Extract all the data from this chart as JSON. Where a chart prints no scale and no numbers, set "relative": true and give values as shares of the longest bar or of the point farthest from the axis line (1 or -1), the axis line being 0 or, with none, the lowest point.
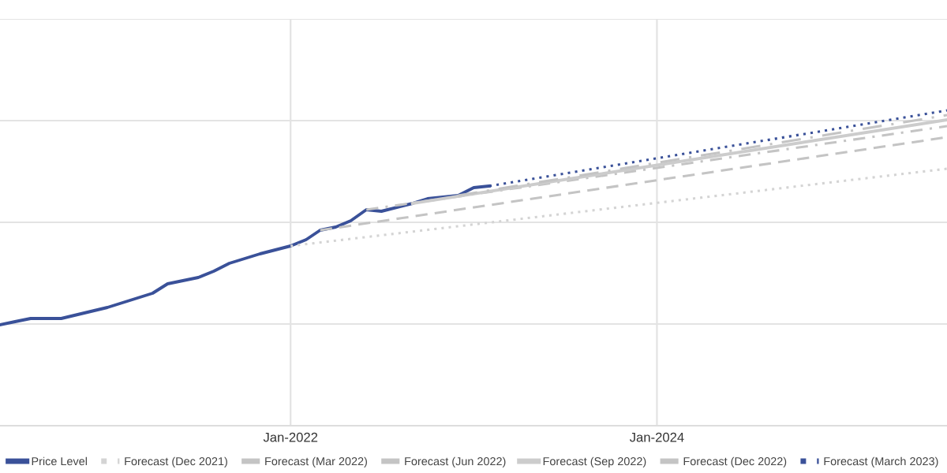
{
  "chart_data": {
    "type": "line",
    "relative": true,
    "grid": true,
    "legend": "bottom",
    "xlim": [
      "2020-06",
      "2025-08"
    ],
    "xticks": [
      {
        "value": "2022-01",
        "label": "Jan-2022"
      },
      {
        "value": "2024-01",
        "label": "Jan-2024"
      }
    ],
    "series": [
      {
        "name": "Price Level",
        "color": "#3a5199",
        "line_style": "solid",
        "x": [
          "2020-06",
          "2020-07",
          "2020-08",
          "2020-10",
          "2021-01",
          "2021-04",
          "2021-05",
          "2021-07",
          "2021-08",
          "2021-09",
          "2021-11",
          "2022-01",
          "2022-02",
          "2022-03",
          "2022-04",
          "2022-05",
          "2022-06",
          "2022-07",
          "2022-09",
          "2022-10",
          "2022-12",
          "2023-01",
          "2023-02"
        ],
        "values": [
          0.32,
          0.33,
          0.34,
          0.34,
          0.375,
          0.42,
          0.45,
          0.47,
          0.49,
          0.515,
          0.545,
          0.57,
          0.59,
          0.62,
          0.63,
          0.65,
          0.685,
          0.68,
          0.705,
          0.72,
          0.73,
          0.755,
          0.76
        ]
      },
      {
        "name": "Forecast (Dec 2021)",
        "color": "#d4d4d4",
        "line_style": "dotted",
        "x": [
          "2022-01",
          "2025-08"
        ],
        "values": [
          0.57,
          0.815
        ]
      },
      {
        "name": "Forecast (Mar 2022)",
        "color": "#c4c4c4",
        "line_style": "dashed",
        "x": [
          "2022-03",
          "2025-08"
        ],
        "values": [
          0.62,
          0.915
        ]
      },
      {
        "name": "Forecast (Jun 2022)",
        "color": "#c4c4c4",
        "line_style": "dashdot",
        "x": [
          "2022-06",
          "2025-08"
        ],
        "values": [
          0.685,
          0.95
        ]
      },
      {
        "name": "Forecast (Sep 2022)",
        "color": "#cccccc",
        "line_style": "solid",
        "x": [
          "2022-09",
          "2025-08"
        ],
        "values": [
          0.705,
          0.97
        ]
      },
      {
        "name": "Forecast (Dec 2022)",
        "color": "#c4c4c4",
        "line_style": "longdash",
        "x": [
          "2022-12",
          "2025-08"
        ],
        "values": [
          0.73,
          0.985
        ]
      },
      {
        "name": "Forecast (March 2023)",
        "color": "#3a5199",
        "line_style": "dotted",
        "x": [
          "2023-02",
          "2025-08"
        ],
        "values": [
          0.76,
          1.0
        ]
      }
    ]
  }
}
